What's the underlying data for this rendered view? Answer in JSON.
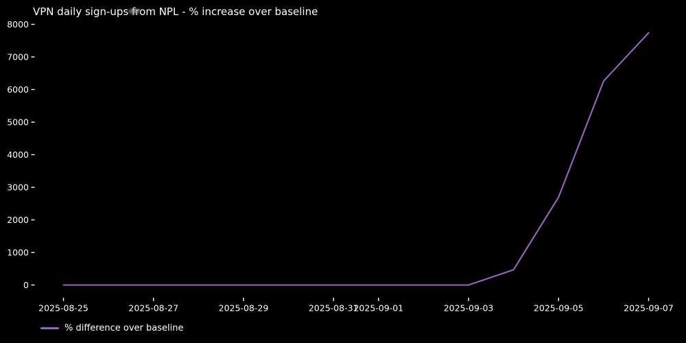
{
  "window": {
    "background_color": "#000000",
    "text_color": "#ffffff"
  },
  "chart_data": {
    "type": "line",
    "title": "VPN daily sign-ups from NPL - % increase over baseline",
    "xlabel": "",
    "ylabel": "",
    "grid": false,
    "legend_position": "bottom-left-below-axes",
    "x": [
      "2025-08-25",
      "2025-08-26",
      "2025-08-27",
      "2025-08-28",
      "2025-08-29",
      "2025-08-30",
      "2025-08-31",
      "2025-09-01",
      "2025-09-02",
      "2025-09-03",
      "2025-09-04",
      "2025-09-05",
      "2025-09-06",
      "2025-09-07"
    ],
    "series": [
      {
        "name": "% difference over baseline",
        "color": "#9467bd",
        "values": [
          0,
          0,
          0,
          0,
          0,
          0,
          0,
          0,
          0,
          0,
          470,
          2700,
          6260,
          7740
        ]
      }
    ],
    "y_ticks": [
      0,
      1000,
      2000,
      3000,
      4000,
      5000,
      6000,
      7000,
      8000
    ],
    "x_tick_labels": [
      {
        "label": "2025-08-25",
        "x_index": 0
      },
      {
        "label": "2025-08-27",
        "x_index": 2
      },
      {
        "label": "2025-08-29",
        "x_index": 4
      },
      {
        "label": "2025-08-31",
        "x_index": 6
      },
      {
        "label": "2025-09-01",
        "x_index": 7
      },
      {
        "label": "2025-09-03",
        "x_index": 9
      },
      {
        "label": "2025-09-05",
        "x_index": 11
      },
      {
        "label": "2025-09-07",
        "x_index": 13
      }
    ],
    "ylim": [
      -410,
      8130
    ],
    "background_color": "#000000",
    "tick_color": "#ffffff"
  }
}
